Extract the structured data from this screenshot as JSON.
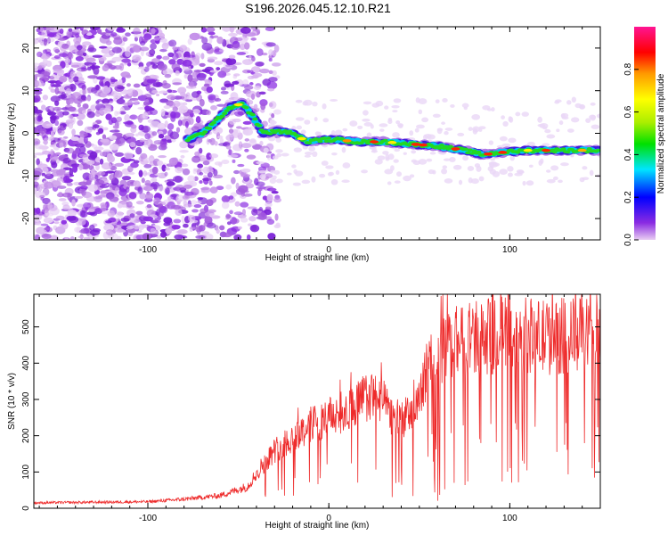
{
  "title": "S196.2026.045.12.10.R21",
  "chart_data": [
    {
      "type": "heatmap",
      "name": "spectrogram",
      "xlabel": "Height of straight line (km)",
      "ylabel": "Frequency (Hz)",
      "xlim": [
        -163,
        150
      ],
      "ylim": [
        -25,
        25
      ],
      "xticks": [
        -100,
        0,
        100
      ],
      "yticks": [
        -20,
        -10,
        0,
        10,
        20
      ],
      "colorbar": {
        "label": "Normalized spectral amplitude",
        "range": [
          0,
          1
        ],
        "ticks": [
          0.0,
          0.2,
          0.4,
          0.6,
          0.8
        ]
      },
      "ridge": [
        {
          "x": -78,
          "y": -1.5
        },
        {
          "x": -70,
          "y": 0
        },
        {
          "x": -62,
          "y": 3
        },
        {
          "x": -55,
          "y": 6
        },
        {
          "x": -48,
          "y": 7
        },
        {
          "x": -42,
          "y": 4
        },
        {
          "x": -36,
          "y": 0
        },
        {
          "x": -28,
          "y": 0.5
        },
        {
          "x": -20,
          "y": 0
        },
        {
          "x": -12,
          "y": -2
        },
        {
          "x": -5,
          "y": -1.5
        },
        {
          "x": 5,
          "y": -1.5
        },
        {
          "x": 15,
          "y": -2
        },
        {
          "x": 30,
          "y": -2
        },
        {
          "x": 45,
          "y": -2.5
        },
        {
          "x": 60,
          "y": -3
        },
        {
          "x": 75,
          "y": -4
        },
        {
          "x": 85,
          "y": -5
        },
        {
          "x": 95,
          "y": -4.5
        },
        {
          "x": 110,
          "y": -4
        },
        {
          "x": 130,
          "y": -4
        },
        {
          "x": 150,
          "y": -4
        }
      ]
    },
    {
      "type": "line",
      "name": "snr",
      "xlabel": "Height of straight line (km)",
      "ylabel": "SNR (10 * v/v)",
      "xlim": [
        -163,
        150
      ],
      "ylim": [
        0,
        590
      ],
      "xticks": [
        -100,
        0,
        100
      ],
      "yticks": [
        0,
        100,
        200,
        300,
        400,
        500
      ],
      "color": "#ee2b2b",
      "envelope": [
        {
          "x": -163,
          "y": 15
        },
        {
          "x": -100,
          "y": 18
        },
        {
          "x": -80,
          "y": 25
        },
        {
          "x": -60,
          "y": 35
        },
        {
          "x": -45,
          "y": 60
        },
        {
          "x": -38,
          "y": 110
        },
        {
          "x": -30,
          "y": 160
        },
        {
          "x": -20,
          "y": 195
        },
        {
          "x": -10,
          "y": 230
        },
        {
          "x": 0,
          "y": 250
        },
        {
          "x": 10,
          "y": 270
        },
        {
          "x": 20,
          "y": 305
        },
        {
          "x": 28,
          "y": 305
        },
        {
          "x": 35,
          "y": 255
        },
        {
          "x": 42,
          "y": 250
        },
        {
          "x": 48,
          "y": 265
        },
        {
          "x": 52,
          "y": 350
        },
        {
          "x": 58,
          "y": 420
        },
        {
          "x": 70,
          "y": 460
        },
        {
          "x": 85,
          "y": 470
        },
        {
          "x": 100,
          "y": 480
        },
        {
          "x": 120,
          "y": 470
        },
        {
          "x": 150,
          "y": 485
        }
      ]
    }
  ]
}
